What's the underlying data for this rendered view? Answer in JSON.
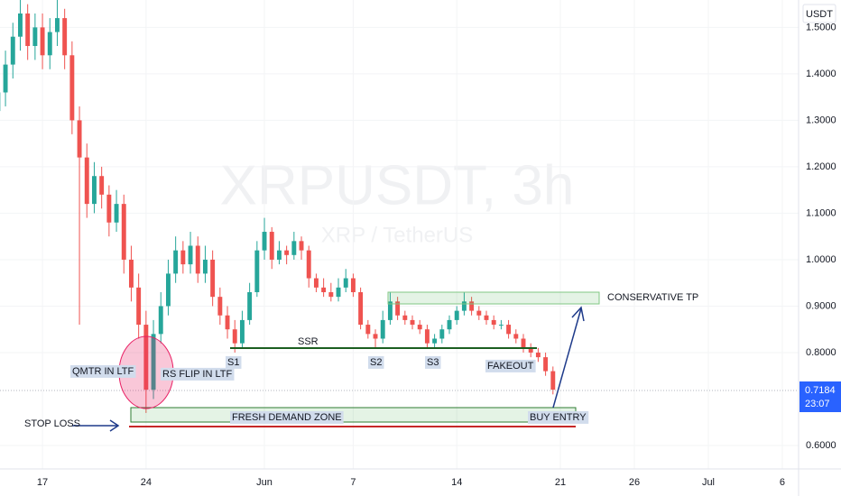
{
  "chart_data": {
    "type": "candlestick",
    "watermark": "XRPUSDT, 3h",
    "watermark_sub": "XRP / TetherUS",
    "currency": "USDT",
    "up_color": "#26a69a",
    "down_color": "#ef5350",
    "x": [
      -3,
      -2.5,
      -2,
      -1.5,
      -1,
      -0.5,
      0,
      0.5,
      1,
      1.5,
      2,
      2.5,
      3,
      3.5,
      4,
      4.5,
      5,
      5.5,
      6,
      6.5,
      7,
      7.5,
      8,
      8.5,
      9,
      9.5,
      10,
      10.5,
      11,
      11.5,
      12,
      12.5,
      13,
      13.5,
      14,
      14.5,
      15,
      15.5,
      16,
      16.5,
      17,
      17.5,
      18,
      18.5,
      19,
      19.5,
      20,
      20.5,
      21,
      21.5,
      22,
      22.5,
      23,
      23.5,
      24,
      24.5,
      25,
      25.5,
      26,
      26.5,
      27,
      27.5,
      28,
      28.5,
      29,
      29.5,
      30,
      30.5,
      31,
      31.5,
      32,
      32.5,
      33,
      33.5,
      34,
      34.5
    ],
    "open": [
      1.32,
      1.36,
      1.42,
      1.48,
      1.53,
      1.46,
      1.5,
      1.44,
      1.49,
      1.52,
      1.44,
      1.3,
      1.22,
      1.12,
      1.18,
      1.14,
      1.08,
      1.12,
      1.0,
      0.94,
      0.86,
      0.72,
      0.84,
      0.9,
      0.97,
      1.02,
      0.99,
      1.03,
      0.97,
      1.0,
      0.92,
      0.88,
      0.85,
      0.82,
      0.87,
      0.93,
      1.02,
      1.06,
      1.0,
      1.02,
      1.01,
      1.04,
      1.02,
      0.96,
      0.94,
      0.93,
      0.92,
      0.94,
      0.96,
      0.93,
      0.86,
      0.84,
      0.83,
      0.87,
      0.91,
      0.88,
      0.87,
      0.86,
      0.85,
      0.82,
      0.83,
      0.85,
      0.87,
      0.89,
      0.91,
      0.89,
      0.88,
      0.87,
      0.86,
      0.86,
      0.84,
      0.83,
      0.81,
      0.8,
      0.79,
      0.76
    ],
    "high": [
      1.39,
      1.45,
      1.51,
      1.56,
      1.55,
      1.53,
      1.53,
      1.52,
      1.56,
      1.54,
      1.47,
      1.33,
      1.25,
      1.21,
      1.2,
      1.16,
      1.15,
      1.14,
      1.03,
      0.97,
      0.89,
      0.87,
      0.93,
      1.0,
      1.05,
      1.04,
      1.06,
      1.05,
      1.03,
      1.02,
      0.94,
      0.9,
      0.87,
      0.89,
      0.95,
      1.04,
      1.09,
      1.07,
      1.04,
      1.03,
      1.06,
      1.05,
      1.03,
      0.97,
      0.96,
      0.95,
      0.96,
      0.98,
      0.97,
      0.94,
      0.87,
      0.85,
      0.89,
      0.93,
      0.92,
      0.89,
      0.88,
      0.87,
      0.86,
      0.84,
      0.86,
      0.88,
      0.9,
      0.93,
      0.92,
      0.9,
      0.89,
      0.88,
      0.87,
      0.87,
      0.85,
      0.84,
      0.82,
      0.81,
      0.8,
      0.77
    ],
    "low": [
      1.3,
      1.33,
      1.39,
      1.45,
      1.43,
      1.43,
      1.41,
      1.41,
      1.46,
      1.41,
      1.27,
      0.86,
      1.09,
      1.1,
      1.11,
      1.05,
      1.06,
      0.97,
      0.91,
      0.83,
      0.67,
      0.7,
      0.82,
      0.88,
      0.95,
      0.97,
      0.97,
      0.95,
      0.95,
      0.9,
      0.86,
      0.83,
      0.8,
      0.81,
      0.86,
      0.92,
      1.0,
      0.98,
      0.99,
      0.99,
      1.0,
      1.0,
      0.94,
      0.93,
      0.92,
      0.91,
      0.91,
      0.93,
      0.92,
      0.85,
      0.83,
      0.81,
      0.82,
      0.86,
      0.87,
      0.86,
      0.85,
      0.84,
      0.81,
      0.81,
      0.82,
      0.84,
      0.86,
      0.88,
      0.88,
      0.87,
      0.86,
      0.85,
      0.85,
      0.83,
      0.82,
      0.8,
      0.79,
      0.78,
      0.75,
      0.71
    ],
    "close": [
      1.36,
      1.42,
      1.48,
      1.53,
      1.46,
      1.5,
      1.44,
      1.49,
      1.52,
      1.44,
      1.3,
      1.22,
      1.12,
      1.18,
      1.14,
      1.08,
      1.12,
      1.0,
      0.94,
      0.86,
      0.72,
      0.84,
      0.9,
      0.97,
      1.02,
      0.99,
      1.03,
      0.97,
      1.0,
      0.92,
      0.88,
      0.85,
      0.82,
      0.87,
      0.93,
      1.02,
      1.06,
      1.0,
      1.02,
      1.01,
      1.04,
      1.02,
      0.96,
      0.94,
      0.93,
      0.92,
      0.94,
      0.96,
      0.93,
      0.86,
      0.84,
      0.83,
      0.87,
      0.91,
      0.88,
      0.87,
      0.86,
      0.85,
      0.82,
      0.83,
      0.85,
      0.87,
      0.89,
      0.91,
      0.89,
      0.88,
      0.87,
      0.86,
      0.86,
      0.84,
      0.83,
      0.81,
      0.8,
      0.79,
      0.76,
      0.72
    ],
    "xlim": [
      -2.87,
      51.1
    ],
    "ylim": [
      0.5495,
      1.559
    ],
    "xticks": [
      {
        "value": 0,
        "label": "17"
      },
      {
        "value": 7,
        "label": "24"
      },
      {
        "value": 15,
        "label": "Jun"
      },
      {
        "value": 21,
        "label": "7"
      },
      {
        "value": 28,
        "label": "14"
      },
      {
        "value": 35,
        "label": "21"
      },
      {
        "value": 40,
        "label": "26"
      },
      {
        "value": 45,
        "label": "Jul"
      },
      {
        "value": 50,
        "label": "6"
      }
    ],
    "yticks": [
      {
        "value": 0.6,
        "label": "0.6000"
      },
      {
        "value": 0.8,
        "label": "0.8000"
      },
      {
        "value": 0.9,
        "label": "0.9000"
      },
      {
        "value": 1.0,
        "label": "1.0000"
      },
      {
        "value": 1.1,
        "label": "1.1000"
      },
      {
        "value": 1.2,
        "label": "1.2000"
      },
      {
        "value": 1.3,
        "label": "1.3000"
      },
      {
        "value": 1.4,
        "label": "1.4000"
      },
      {
        "value": 1.5,
        "label": "1.5000"
      }
    ],
    "last_price": {
      "value": 0.7184,
      "label": "0.7184"
    },
    "countdown": "23:07",
    "labels": {
      "stop_loss": "STOP LOSS",
      "demand_zone": "FRESH DEMAND ZONE",
      "buy_entry": "BUY ENTRY",
      "qmtr": "QMTR IN LTF",
      "rs_flip": "RS FLIP IN LTF",
      "ssr": "SSR",
      "s1": "S1",
      "s2": "S2",
      "s3": "S3",
      "fakeout": "FAKEOUT",
      "tp": "CONSERVATIVE TP"
    }
  }
}
